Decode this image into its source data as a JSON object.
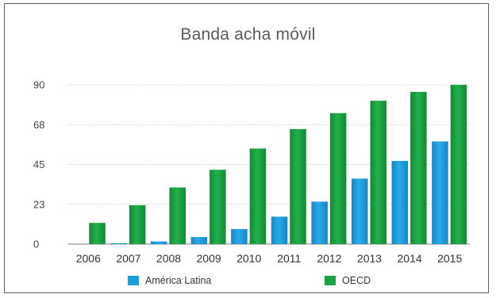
{
  "chart_data": {
    "type": "bar",
    "title": "Banda acha móvil",
    "xlabel": "",
    "ylabel": "",
    "categories": [
      "2006",
      "2007",
      "2008",
      "2009",
      "2010",
      "2011",
      "2012",
      "2013",
      "2014",
      "2015"
    ],
    "yticks": [
      "0",
      "23",
      "45",
      "68",
      "90"
    ],
    "ytick_values": [
      0,
      22.5,
      45,
      67.5,
      90
    ],
    "ylim": [
      0,
      90
    ],
    "grid": true,
    "legend_position": "bottom",
    "series": [
      {
        "name": "América Latina",
        "color": "#1a9fdc",
        "values": [
          0,
          0.5,
          1.5,
          4,
          8.5,
          15.5,
          24,
          37,
          47,
          58
        ]
      },
      {
        "name": "OECD",
        "color": "#1aa243",
        "values": [
          12,
          22,
          32,
          42,
          54,
          65,
          74,
          81,
          86,
          90
        ]
      }
    ]
  }
}
